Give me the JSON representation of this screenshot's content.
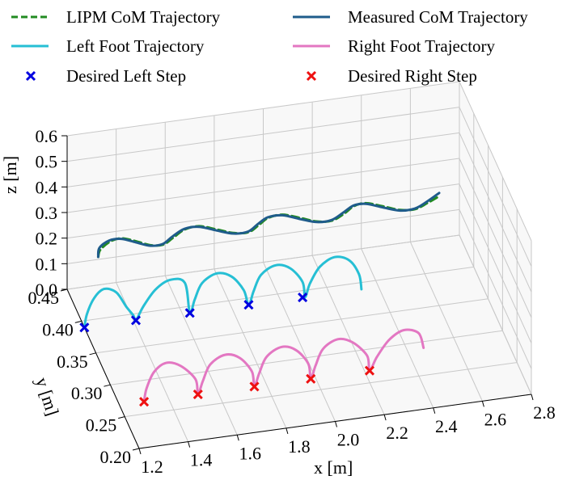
{
  "chart_data": {
    "type": "line",
    "projection": "3d",
    "legend": {
      "placement": "top",
      "entries": [
        {
          "label": "LIPM CoM Trajectory",
          "color": "#228b22",
          "style": "dashed"
        },
        {
          "label": "Measured CoM Trajectory",
          "color": "#1f5c8b",
          "style": "solid"
        },
        {
          "label": "Left Foot Trajectory",
          "color": "#26bfd4",
          "style": "solid"
        },
        {
          "label": "Right Foot Trajectory",
          "color": "#e377c2",
          "style": "solid"
        },
        {
          "label": "Desired Left Step",
          "color": "#0000e0",
          "style": "x-marker"
        },
        {
          "label": "Desired Right Step",
          "color": "#ee1111",
          "style": "x-marker"
        }
      ]
    },
    "axes": {
      "x": {
        "label": "x [m]",
        "range": [
          1.2,
          2.8
        ],
        "ticks": [
          "1.2",
          "1.4",
          "1.6",
          "1.8",
          "2.0",
          "2.2",
          "2.4",
          "2.6",
          "2.8"
        ]
      },
      "y": {
        "label": "y [m]",
        "range": [
          0.2,
          0.45
        ],
        "ticks": [
          "0.20",
          "0.25",
          "0.30",
          "0.35",
          "0.40",
          "0.45"
        ]
      },
      "z": {
        "label": "z [m]",
        "range": [
          0.0,
          0.6
        ],
        "ticks": [
          "0.0",
          "0.1",
          "0.2",
          "0.3",
          "0.4",
          "0.5",
          "0.6"
        ]
      }
    },
    "grid": true,
    "series": [
      {
        "name": "LIPM CoM Trajectory",
        "color": "#228b22",
        "style": "dashed",
        "x": [
          1.18,
          1.2,
          1.25,
          1.3,
          1.35,
          1.4,
          1.45,
          1.5,
          1.56,
          1.62,
          1.68,
          1.74,
          1.8,
          1.85,
          1.9,
          1.96,
          2.02,
          2.08,
          2.14,
          2.2,
          2.25,
          2.3,
          2.36,
          2.42,
          2.48,
          2.54,
          2.6
        ],
        "y": [
          0.325,
          0.335,
          0.345,
          0.348,
          0.341,
          0.332,
          0.33,
          0.338,
          0.348,
          0.35,
          0.342,
          0.333,
          0.331,
          0.339,
          0.348,
          0.35,
          0.342,
          0.333,
          0.331,
          0.339,
          0.348,
          0.35,
          0.342,
          0.333,
          0.331,
          0.338,
          0.346
        ],
        "z": [
          0.44,
          0.44,
          0.44,
          0.44,
          0.44,
          0.44,
          0.44,
          0.44,
          0.44,
          0.44,
          0.44,
          0.44,
          0.44,
          0.44,
          0.44,
          0.44,
          0.44,
          0.44,
          0.44,
          0.44,
          0.44,
          0.44,
          0.44,
          0.44,
          0.44,
          0.44,
          0.44
        ]
      },
      {
        "name": "Measured CoM Trajectory",
        "color": "#1f5c8b",
        "style": "solid",
        "x": [
          1.18,
          1.2,
          1.25,
          1.3,
          1.35,
          1.4,
          1.45,
          1.5,
          1.56,
          1.62,
          1.68,
          1.74,
          1.8,
          1.85,
          1.9,
          1.96,
          2.02,
          2.08,
          2.14,
          2.2,
          2.25,
          2.3,
          2.36,
          2.42,
          2.48,
          2.54,
          2.6
        ],
        "y": [
          0.325,
          0.338,
          0.347,
          0.347,
          0.339,
          0.331,
          0.331,
          0.34,
          0.349,
          0.349,
          0.34,
          0.332,
          0.332,
          0.341,
          0.349,
          0.349,
          0.34,
          0.332,
          0.332,
          0.341,
          0.349,
          0.349,
          0.34,
          0.332,
          0.332,
          0.34,
          0.35
        ],
        "z": [
          0.44,
          0.44,
          0.44,
          0.44,
          0.44,
          0.44,
          0.44,
          0.44,
          0.44,
          0.44,
          0.44,
          0.44,
          0.44,
          0.44,
          0.44,
          0.44,
          0.44,
          0.44,
          0.44,
          0.44,
          0.44,
          0.44,
          0.44,
          0.44,
          0.44,
          0.44,
          0.44
        ]
      },
      {
        "name": "Left Foot Trajectory",
        "color": "#26bfd4",
        "style": "solid",
        "x": [
          1.2,
          1.21,
          1.24,
          1.28,
          1.33,
          1.37,
          1.4,
          1.41,
          1.44,
          1.49,
          1.55,
          1.61,
          1.63,
          1.65,
          1.68,
          1.74,
          1.8,
          1.85,
          1.87,
          1.89,
          1.92,
          1.98,
          2.04,
          2.09,
          2.1,
          2.12,
          2.16,
          2.22,
          2.28,
          2.32,
          2.33
        ],
        "y": [
          0.39,
          0.39,
          0.39,
          0.39,
          0.39,
          0.39,
          0.39,
          0.39,
          0.39,
          0.39,
          0.39,
          0.39,
          0.39,
          0.39,
          0.39,
          0.39,
          0.39,
          0.39,
          0.39,
          0.39,
          0.39,
          0.39,
          0.39,
          0.39,
          0.39,
          0.39,
          0.39,
          0.39,
          0.39,
          0.39,
          0.39
        ],
        "z": [
          0.0,
          0.05,
          0.11,
          0.14,
          0.12,
          0.06,
          0.02,
          0.0,
          0.05,
          0.11,
          0.14,
          0.12,
          0.0,
          0.05,
          0.11,
          0.14,
          0.12,
          0.06,
          0.0,
          0.05,
          0.11,
          0.14,
          0.12,
          0.06,
          0.0,
          0.05,
          0.11,
          0.14,
          0.12,
          0.06,
          0.0
        ]
      },
      {
        "name": "Right Foot Trajectory",
        "color": "#e377c2",
        "style": "solid",
        "x": [
          1.3,
          1.31,
          1.34,
          1.39,
          1.45,
          1.51,
          1.52,
          1.54,
          1.57,
          1.63,
          1.69,
          1.74,
          1.75,
          1.77,
          1.8,
          1.86,
          1.92,
          1.97,
          1.98,
          2.0,
          2.03,
          2.09,
          2.15,
          2.21,
          2.22,
          2.25,
          2.3,
          2.36,
          2.42,
          2.44
        ],
        "y": [
          0.268,
          0.268,
          0.268,
          0.268,
          0.268,
          0.268,
          0.268,
          0.268,
          0.268,
          0.268,
          0.268,
          0.268,
          0.268,
          0.268,
          0.268,
          0.268,
          0.268,
          0.268,
          0.268,
          0.268,
          0.268,
          0.268,
          0.268,
          0.268,
          0.268,
          0.268,
          0.268,
          0.268,
          0.268,
          0.268
        ],
        "z": [
          0.0,
          0.05,
          0.11,
          0.14,
          0.12,
          0.06,
          0.0,
          0.05,
          0.11,
          0.14,
          0.12,
          0.06,
          0.0,
          0.05,
          0.11,
          0.14,
          0.12,
          0.06,
          0.0,
          0.05,
          0.11,
          0.14,
          0.12,
          0.06,
          0.0,
          0.05,
          0.11,
          0.14,
          0.12,
          0.06
        ]
      },
      {
        "name": "Desired Left Step",
        "color": "#0000e0",
        "style": "x-marker",
        "x": [
          1.2,
          1.41,
          1.63,
          1.87,
          2.09
        ],
        "y": [
          0.39,
          0.39,
          0.39,
          0.39,
          0.39
        ],
        "z": [
          0.0,
          0.0,
          0.0,
          0.0,
          0.0
        ]
      },
      {
        "name": "Desired Right Step",
        "color": "#ee1111",
        "style": "x-marker",
        "x": [
          1.3,
          1.52,
          1.75,
          1.98,
          2.22
        ],
        "y": [
          0.268,
          0.268,
          0.268,
          0.268,
          0.268
        ],
        "z": [
          0.0,
          0.0,
          0.0,
          0.0,
          0.0
        ]
      }
    ]
  }
}
